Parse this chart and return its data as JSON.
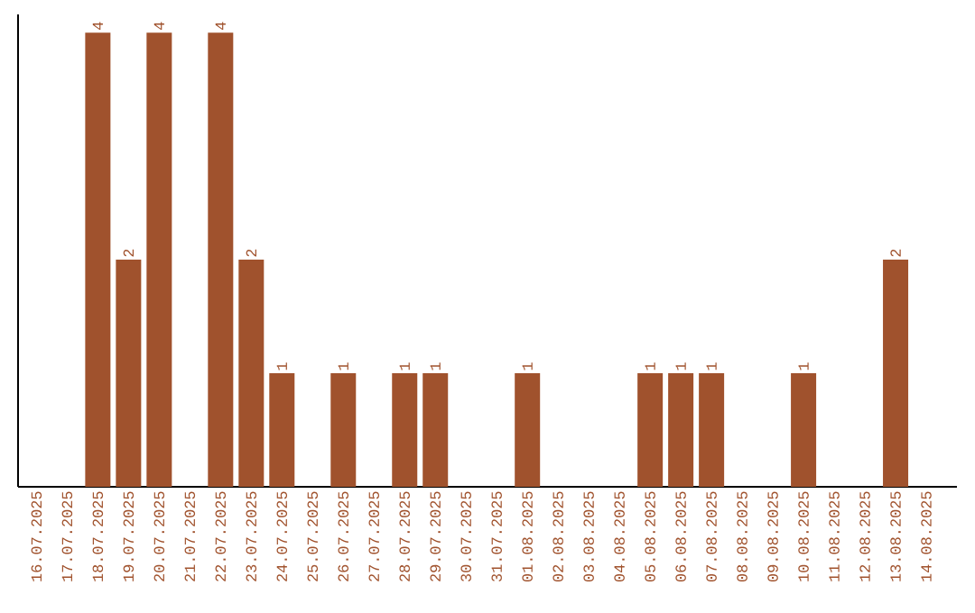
{
  "chart_data": {
    "type": "bar",
    "categories": [
      "16.07.2025",
      "17.07.2025",
      "18.07.2025",
      "19.07.2025",
      "20.07.2025",
      "21.07.2025",
      "22.07.2025",
      "23.07.2025",
      "24.07.2025",
      "25.07.2025",
      "26.07.2025",
      "27.07.2025",
      "28.07.2025",
      "29.07.2025",
      "30.07.2025",
      "31.07.2025",
      "01.08.2025",
      "02.08.2025",
      "03.08.2025",
      "04.08.2025",
      "05.08.2025",
      "06.08.2025",
      "07.08.2025",
      "08.08.2025",
      "09.08.2025",
      "10.08.2025",
      "11.08.2025",
      "12.08.2025",
      "13.08.2025",
      "14.08.2025"
    ],
    "values": [
      0,
      0,
      4,
      2,
      4,
      0,
      4,
      2,
      1,
      0,
      1,
      0,
      1,
      1,
      0,
      0,
      1,
      0,
      0,
      0,
      1,
      1,
      1,
      0,
      0,
      1,
      0,
      0,
      2,
      0
    ],
    "value_labels": [
      null,
      null,
      "4",
      "2",
      "4",
      null,
      "4",
      "2",
      "1",
      null,
      "1",
      null,
      "1",
      "1",
      null,
      null,
      "1",
      null,
      null,
      null,
      "1",
      "1",
      "1",
      null,
      null,
      "1",
      null,
      null,
      "2",
      null
    ],
    "color": "#a0522d",
    "grid": false
  }
}
